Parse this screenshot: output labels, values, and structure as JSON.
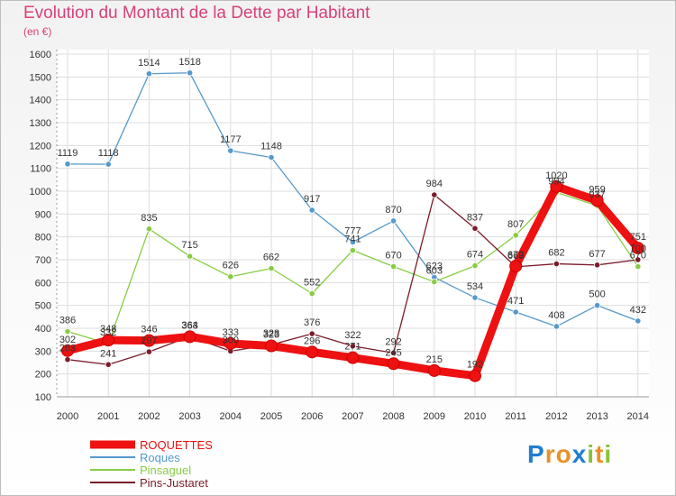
{
  "title": "Evolution du Montant de la Dette par Habitant",
  "unit": "(en €)",
  "logo": "Proxiti",
  "chart_data": {
    "type": "line",
    "title": "Evolution du Montant de la Dette par Habitant",
    "ylabel": "(en €)",
    "xlabel": "",
    "ylim": [
      100,
      1600
    ],
    "yticks": [
      100,
      200,
      300,
      400,
      500,
      600,
      700,
      800,
      900,
      1000,
      1100,
      1200,
      1300,
      1400,
      1500,
      1600
    ],
    "x": [
      "2000",
      "2001",
      "2002",
      "2003",
      "2004",
      "2005",
      "2006",
      "2007",
      "2008",
      "2009",
      "2010",
      "2011",
      "2012",
      "2013",
      "2014"
    ],
    "grid": true,
    "legend": "bottom-left",
    "series": [
      {
        "name": "ROQUETTES",
        "color": "#ee1111",
        "values": [
          302,
          348,
          346,
          363,
          333,
          323,
          296,
          271,
          245,
          215,
          192,
          672,
          1020,
          959,
          751
        ]
      },
      {
        "name": "Roques",
        "color": "#5599cc",
        "values": [
          1119,
          1118,
          1514,
          1518,
          1177,
          1148,
          917,
          777,
          870,
          623,
          534,
          471,
          408,
          500,
          432
        ]
      },
      {
        "name": "Pinsaguel",
        "color": "#88cc44",
        "values": [
          386,
          332,
          835,
          715,
          626,
          662,
          552,
          741,
          670,
          603,
          674,
          807,
          994,
          937,
          670
        ]
      },
      {
        "name": "Pins-Justaret",
        "color": "#7a1c2a",
        "values": [
          263,
          241,
          297,
          364,
          300,
          328,
          376,
          322,
          292,
          984,
          837,
          669,
          682,
          677,
          700
        ]
      }
    ]
  }
}
